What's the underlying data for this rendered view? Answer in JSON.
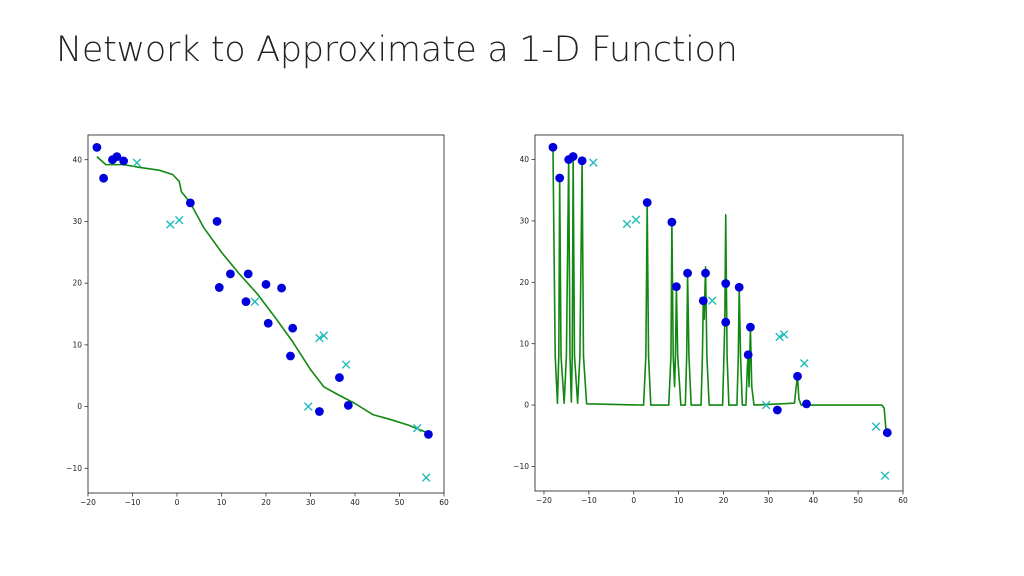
{
  "slide": {
    "title": "Network to Approximate a 1-D Function"
  },
  "chart_data": [
    {
      "type": "scatter",
      "title": "",
      "xlabel": "",
      "ylabel": "",
      "xlim": [
        -20,
        60
      ],
      "ylim": [
        -14,
        44
      ],
      "xticks": [
        -20,
        -10,
        0,
        10,
        20,
        30,
        40,
        50,
        60
      ],
      "yticks": [
        -10,
        0,
        10,
        20,
        30,
        40
      ],
      "xtick_labels": [
        "−20",
        "−10",
        "0",
        "10",
        "20",
        "30",
        "40",
        "50",
        "60"
      ],
      "ytick_labels": [
        "−10",
        "0",
        "10",
        "20",
        "30",
        "40"
      ],
      "series": [
        {
          "kind": "train-points",
          "marker": "circle",
          "color": "#0000dd",
          "points": [
            [
              -18,
              42
            ],
            [
              -16.5,
              37
            ],
            [
              -14.5,
              40
            ],
            [
              -13.5,
              40.5
            ],
            [
              -12,
              39.8
            ],
            [
              3,
              33
            ],
            [
              9,
              30
            ],
            [
              9.5,
              19.3
            ],
            [
              12,
              21.5
            ],
            [
              15.5,
              17
            ],
            [
              16,
              21.5
            ],
            [
              20,
              19.8
            ],
            [
              20.5,
              13.5
            ],
            [
              23.5,
              19.2
            ],
            [
              25.5,
              8.2
            ],
            [
              26,
              12.7
            ],
            [
              32,
              -0.8
            ],
            [
              36.5,
              4.7
            ],
            [
              38.5,
              0.2
            ],
            [
              56.5,
              -4.5
            ]
          ]
        },
        {
          "kind": "test-points",
          "marker": "x",
          "color": "#22bbbb",
          "points": [
            [
              -9,
              39.5
            ],
            [
              -1.5,
              29.5
            ],
            [
              0.5,
              30.2
            ],
            [
              17.5,
              17
            ],
            [
              32,
              11.1
            ],
            [
              33,
              11.5
            ],
            [
              29.5,
              0
            ],
            [
              38,
              6.8
            ],
            [
              54,
              -3.5
            ],
            [
              56,
              -11.5
            ]
          ]
        },
        {
          "kind": "fitted-curve",
          "marker": "line",
          "color": "#118811",
          "points": [
            [
              -18,
              40.5
            ],
            [
              -16,
              39.2
            ],
            [
              -12,
              39.2
            ],
            [
              -8,
              38.7
            ],
            [
              -4,
              38.3
            ],
            [
              -1,
              37.6
            ],
            [
              0.5,
              36.5
            ],
            [
              1,
              34.8
            ],
            [
              3,
              33
            ],
            [
              6,
              29
            ],
            [
              10,
              25
            ],
            [
              14,
              21.5
            ],
            [
              18,
              18.3
            ],
            [
              22,
              14.5
            ],
            [
              26,
              10.5
            ],
            [
              30,
              6
            ],
            [
              33,
              3.2
            ],
            [
              36,
              2
            ],
            [
              40,
              0.5
            ],
            [
              44,
              -1.3
            ],
            [
              48,
              -2.1
            ],
            [
              52,
              -3
            ],
            [
              56.5,
              -4.3
            ]
          ]
        }
      ]
    },
    {
      "type": "scatter",
      "title": "",
      "xlabel": "",
      "ylabel": "",
      "xlim": [
        -22,
        60
      ],
      "ylim": [
        -14,
        44
      ],
      "xticks": [
        -20,
        -10,
        0,
        10,
        20,
        30,
        40,
        50,
        60
      ],
      "yticks": [
        -10,
        0,
        10,
        20,
        30,
        40
      ],
      "xtick_labels": [
        "−20",
        "−10",
        "0",
        "10",
        "20",
        "30",
        "40",
        "50",
        "60"
      ],
      "ytick_labels": [
        "−10",
        "0",
        "10",
        "20",
        "30",
        "40"
      ],
      "series": [
        {
          "kind": "train-points",
          "marker": "circle",
          "color": "#0000dd",
          "points": [
            [
              -18,
              42
            ],
            [
              -16.5,
              37
            ],
            [
              -14.5,
              40
            ],
            [
              -13.5,
              40.5
            ],
            [
              -11.5,
              39.8
            ],
            [
              3,
              33
            ],
            [
              8.5,
              29.8
            ],
            [
              9.5,
              19.3
            ],
            [
              12,
              21.5
            ],
            [
              15.5,
              17
            ],
            [
              16,
              21.5
            ],
            [
              20.5,
              19.8
            ],
            [
              20.5,
              13.5
            ],
            [
              23.5,
              19.2
            ],
            [
              25.5,
              8.2
            ],
            [
              26,
              12.7
            ],
            [
              32,
              -0.8
            ],
            [
              36.5,
              4.7
            ],
            [
              38.5,
              0.2
            ],
            [
              56.5,
              -4.5
            ]
          ]
        },
        {
          "kind": "test-points",
          "marker": "x",
          "color": "#22bbbb",
          "points": [
            [
              -9,
              39.5
            ],
            [
              -1.5,
              29.5
            ],
            [
              0.5,
              30.2
            ],
            [
              17.5,
              17
            ],
            [
              32.5,
              11.1
            ],
            [
              33.5,
              11.5
            ],
            [
              29.5,
              0
            ],
            [
              38,
              6.8
            ],
            [
              54,
              -3.5
            ],
            [
              56,
              -11.5
            ]
          ]
        },
        {
          "kind": "fitted-curve",
          "marker": "line",
          "color": "#118811",
          "points": [
            [
              -18.5,
              41.5
            ],
            [
              -18,
              42
            ],
            [
              -17.5,
              8
            ],
            [
              -17,
              0.3
            ],
            [
              -16.7,
              8
            ],
            [
              -16.5,
              37
            ],
            [
              -16.2,
              8
            ],
            [
              -15.5,
              0.3
            ],
            [
              -15,
              8
            ],
            [
              -14.5,
              40
            ],
            [
              -14.2,
              8
            ],
            [
              -13.9,
              0.5
            ],
            [
              -13.7,
              8
            ],
            [
              -13.5,
              40.5
            ],
            [
              -13.2,
              8
            ],
            [
              -12.5,
              0.3
            ],
            [
              -12,
              8
            ],
            [
              -11.5,
              39.8
            ],
            [
              -11.2,
              8
            ],
            [
              -10.5,
              0.2
            ],
            [
              2.2,
              0
            ],
            [
              2.7,
              8
            ],
            [
              3,
              33
            ],
            [
              3.3,
              8
            ],
            [
              3.8,
              0
            ],
            [
              7.8,
              0
            ],
            [
              8.3,
              8
            ],
            [
              8.5,
              29.8
            ],
            [
              8.8,
              8
            ],
            [
              9.1,
              3
            ],
            [
              9.3,
              8
            ],
            [
              9.5,
              19.3
            ],
            [
              9.8,
              8
            ],
            [
              10.5,
              0
            ],
            [
              11.5,
              0
            ],
            [
              11.8,
              8
            ],
            [
              12,
              21.5
            ],
            [
              12.3,
              8
            ],
            [
              12.8,
              0
            ],
            [
              15,
              0
            ],
            [
              15.3,
              8
            ],
            [
              15.5,
              17
            ],
            [
              15.7,
              14
            ],
            [
              16,
              22.5
            ],
            [
              16.3,
              8
            ],
            [
              16.8,
              0
            ],
            [
              19.8,
              0
            ],
            [
              20.1,
              8
            ],
            [
              20.3,
              14
            ],
            [
              20.5,
              31
            ],
            [
              20.8,
              8
            ],
            [
              21.2,
              0
            ],
            [
              23,
              0
            ],
            [
              23.3,
              8
            ],
            [
              23.5,
              19.2
            ],
            [
              23.8,
              8
            ],
            [
              24.2,
              0
            ],
            [
              25,
              0
            ],
            [
              25.3,
              6
            ],
            [
              25.5,
              8.2
            ],
            [
              25.7,
              3
            ],
            [
              26,
              12.7
            ],
            [
              26.3,
              3
            ],
            [
              26.8,
              0
            ],
            [
              35.8,
              0.3
            ],
            [
              36.2,
              3
            ],
            [
              36.5,
              4.7
            ],
            [
              36.8,
              1
            ],
            [
              37.3,
              0
            ],
            [
              55.3,
              0
            ],
            [
              55.8,
              -0.5
            ],
            [
              56.2,
              -4
            ],
            [
              56.5,
              -4.5
            ]
          ]
        }
      ]
    }
  ]
}
